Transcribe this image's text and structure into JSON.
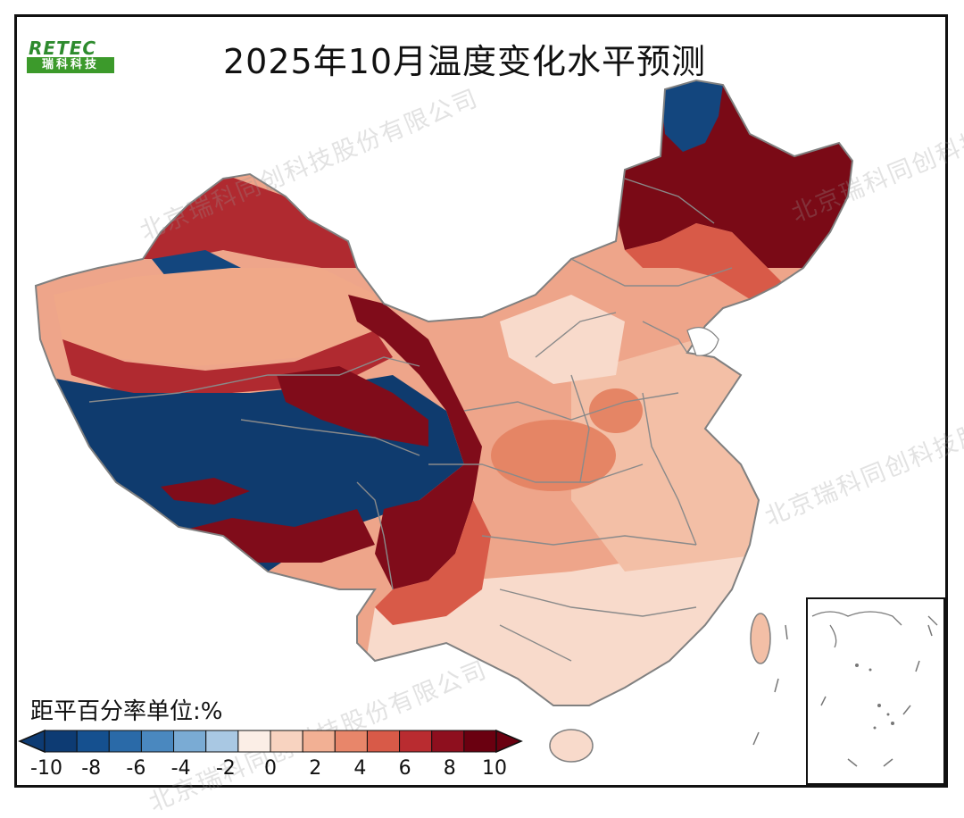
{
  "title": "2025年10月温度变化水平预测",
  "logo": {
    "brand": "RETEC",
    "name": "瑞科科技"
  },
  "watermark": "北京瑞科同创科技股份有限公司",
  "legend": {
    "title": "距平百分率单位:%",
    "ticks": [
      "-10",
      "-8",
      "-6",
      "-4",
      "-2",
      "0",
      "2",
      "4",
      "6",
      "8",
      "10"
    ],
    "colors": [
      "#0d3b73",
      "#15508f",
      "#2a6aa8",
      "#4a88bf",
      "#7aabd4",
      "#a9c8e3",
      "#fbeee6",
      "#f8d3c0",
      "#f2b094",
      "#e8866a",
      "#d85a48",
      "#b92c30",
      "#8e0f1e",
      "#6a0010"
    ]
  },
  "regions": {
    "northwest_desert_warm": "#f0a888",
    "northwest_mountain_hot": "#b02a30",
    "plateau_cold": "#0f3b6e",
    "plateau_edge_hot": "#800c1a",
    "central_warm": "#eea58a",
    "east_warm": "#f3bfa6",
    "south_mild": "#f8dacb",
    "northeast_hot": "#7a0a16",
    "northeast_cold": "#13467e"
  }
}
